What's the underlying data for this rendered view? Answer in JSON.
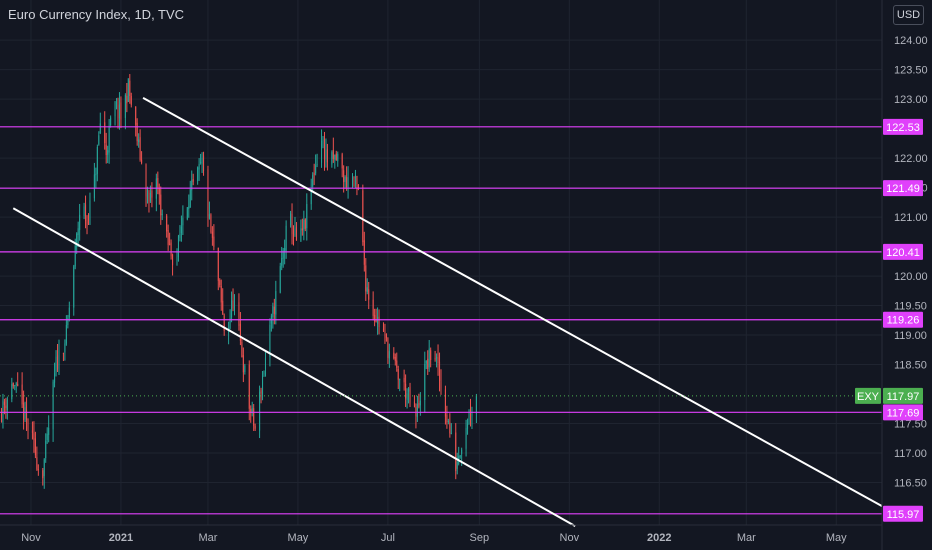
{
  "title": "Euro Currency Index, 1D, TVC",
  "currency_button": "USD",
  "colors": {
    "background": "#131722",
    "grid": "#1f2430",
    "up": "#26a69a",
    "down": "#ef5350",
    "level": "#e040fb",
    "trendline": "#ffffff",
    "last_price": "#4caf50",
    "axis_text": "#b2b5be"
  },
  "chart_data": {
    "type": "candlestick",
    "symbol_label": "EXY",
    "last_price": 117.97,
    "ylim": [
      115.78,
      124.68
    ],
    "y_ticks": [
      "124.00",
      "123.50",
      "123.00",
      "122.00",
      "121.50",
      "121.00",
      "120.00",
      "119.50",
      "119.00",
      "118.50",
      "117.50",
      "117.00",
      "116.50"
    ],
    "x_ticks": [
      "Nov",
      "2021",
      "Mar",
      "May",
      "Jul",
      "Sep",
      "Nov",
      "2022",
      "Mar",
      "May"
    ],
    "x_tick_dates": [
      "2020-11-01",
      "2021-01-01",
      "2021-03-01",
      "2021-05-01",
      "2021-07-01",
      "2021-09-01",
      "2021-11-01",
      "2022-01-01",
      "2022-03-01",
      "2022-05-01"
    ],
    "xlim": [
      "2020-10-11",
      "2022-06-01"
    ],
    "horizontal_levels": [
      122.53,
      121.49,
      120.41,
      119.26,
      117.69,
      115.97
    ],
    "trendlines": [
      {
        "start": {
          "date": "2021-01-16",
          "value": 123.02
        },
        "end": {
          "date": "2022-06-01",
          "value": 116.1
        }
      },
      {
        "start": {
          "date": "2020-10-20",
          "value": 121.15
        },
        "end": {
          "date": "2021-11-05",
          "value": 115.76
        }
      }
    ],
    "close_path": [
      [
        "2020-10-12",
        117.7
      ],
      [
        "2020-10-20",
        118.2
      ],
      [
        "2020-10-28",
        117.6
      ],
      [
        "2020-11-03",
        117.1
      ],
      [
        "2020-11-08",
        116.55
      ],
      [
        "2020-11-12",
        117.2
      ],
      [
        "2020-11-18",
        118.5
      ],
      [
        "2020-11-25",
        119.0
      ],
      [
        "2020-12-01",
        120.4
      ],
      [
        "2020-12-05",
        121.3
      ],
      [
        "2020-12-09",
        120.9
      ],
      [
        "2020-12-14",
        121.6
      ],
      [
        "2020-12-18",
        122.6
      ],
      [
        "2020-12-22",
        122.1
      ],
      [
        "2020-12-27",
        122.9
      ],
      [
        "2021-01-01",
        122.7
      ],
      [
        "2021-01-06",
        123.2
      ],
      [
        "2021-01-10",
        122.6
      ],
      [
        "2021-01-15",
        121.9
      ],
      [
        "2021-01-20",
        121.2
      ],
      [
        "2021-01-25",
        121.6
      ],
      [
        "2021-02-01",
        120.6
      ],
      [
        "2021-02-07",
        120.2
      ],
      [
        "2021-02-13",
        121.2
      ],
      [
        "2021-02-19",
        121.5
      ],
      [
        "2021-02-25",
        121.9
      ],
      [
        "2021-03-02",
        120.9
      ],
      [
        "2021-03-08",
        119.9
      ],
      [
        "2021-03-13",
        118.9
      ],
      [
        "2021-03-18",
        119.6
      ],
      [
        "2021-03-24",
        118.7
      ],
      [
        "2021-03-29",
        117.8
      ],
      [
        "2021-04-02",
        117.4
      ],
      [
        "2021-04-07",
        118.3
      ],
      [
        "2021-04-13",
        119.2
      ],
      [
        "2021-04-19",
        120.1
      ],
      [
        "2021-04-25",
        121.0
      ],
      [
        "2021-05-01",
        120.5
      ],
      [
        "2021-05-06",
        120.9
      ],
      [
        "2021-05-12",
        121.8
      ],
      [
        "2021-05-17",
        122.3
      ],
      [
        "2021-05-22",
        121.9
      ],
      [
        "2021-05-28",
        122.0
      ],
      [
        "2021-06-02",
        121.6
      ],
      [
        "2021-06-07",
        121.7
      ],
      [
        "2021-06-11",
        121.4
      ],
      [
        "2021-06-16",
        119.9
      ],
      [
        "2021-06-21",
        119.4
      ],
      [
        "2021-06-27",
        119.1
      ],
      [
        "2021-07-02",
        118.7
      ],
      [
        "2021-07-08",
        118.3
      ],
      [
        "2021-07-14",
        118.0
      ],
      [
        "2021-07-20",
        117.6
      ],
      [
        "2021-07-26",
        118.4
      ],
      [
        "2021-08-01",
        118.8
      ],
      [
        "2021-08-06",
        118.1
      ],
      [
        "2021-08-11",
        117.5
      ],
      [
        "2021-08-16",
        116.8
      ],
      [
        "2021-08-20",
        117.2
      ],
      [
        "2021-08-25",
        117.7
      ],
      [
        "2021-08-30",
        117.97
      ]
    ]
  }
}
